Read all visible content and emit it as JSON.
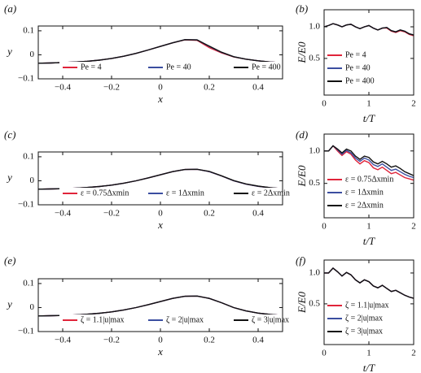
{
  "chart_data": [
    {
      "type": "line",
      "label": "(a)",
      "xlabel": "x",
      "ylabel": "y",
      "legend": "bottom",
      "xlim": [
        -0.5,
        0.5
      ],
      "ylim": [
        -0.1,
        0.12
      ],
      "xticks": [
        {
          "value": -0.4,
          "label": "−0.4"
        },
        {
          "value": -0.2,
          "label": "−0.2"
        },
        0,
        0.2,
        0.4
      ],
      "yticks": [
        {
          "value": -0.1,
          "label": "−0.1"
        },
        0,
        0.1
      ],
      "x": [
        -0.5,
        -0.45,
        -0.4,
        -0.35,
        -0.3,
        -0.25,
        -0.2,
        -0.15,
        -0.1,
        -0.05,
        0,
        0.05,
        0.1,
        0.15,
        0.2,
        0.25,
        0.3,
        0.35,
        0.4,
        0.45,
        0.5
      ],
      "series": [
        {
          "name": "Pe = 4",
          "color": "#e0243a",
          "values": [
            -0.035,
            -0.034,
            -0.032,
            -0.03,
            -0.027,
            -0.022,
            -0.015,
            -0.006,
            0.006,
            0.02,
            0.035,
            0.05,
            0.062,
            0.06,
            0.03,
            0.008,
            -0.009,
            -0.018,
            -0.025,
            -0.03,
            -0.033
          ]
        },
        {
          "name": "Pe = 40",
          "color": "#3b4ea0",
          "values": [
            -0.035,
            -0.034,
            -0.032,
            -0.03,
            -0.027,
            -0.022,
            -0.015,
            -0.006,
            0.006,
            0.02,
            0.035,
            0.05,
            0.063,
            0.062,
            0.035,
            0.01,
            -0.008,
            -0.018,
            -0.025,
            -0.03,
            -0.033
          ]
        },
        {
          "name": "Pe = 400",
          "color": "#111111",
          "values": [
            -0.035,
            -0.034,
            -0.032,
            -0.03,
            -0.027,
            -0.022,
            -0.015,
            -0.006,
            0.006,
            0.02,
            0.035,
            0.05,
            0.063,
            0.062,
            0.036,
            0.011,
            -0.008,
            -0.018,
            -0.025,
            -0.03,
            -0.033
          ]
        }
      ]
    },
    {
      "type": "line",
      "label": "(b)",
      "xlabel": "t/T",
      "ylabel": "E/E0",
      "legend": "lower left",
      "xlim": [
        0,
        2
      ],
      "ylim": [
        -0.08,
        1.27
      ],
      "xticks": [
        0,
        1,
        2
      ],
      "yticks": [
        0.5,
        {
          "value": 1,
          "label": "1.0"
        }
      ],
      "x": [
        0,
        0.1,
        0.2,
        0.3,
        0.4,
        0.5,
        0.6,
        0.7,
        0.8,
        0.9,
        1,
        1.1,
        1.2,
        1.3,
        1.4,
        1.5,
        1.6,
        1.7,
        1.8,
        1.9,
        2
      ],
      "series": [
        {
          "name": "Pe = 4",
          "color": "#e0243a",
          "values": [
            1.0,
            1.02,
            1.05,
            1.03,
            1.0,
            1.03,
            1.04,
            1.0,
            0.97,
            1.0,
            1.02,
            0.98,
            0.95,
            0.98,
            0.98,
            0.93,
            0.91,
            0.94,
            0.92,
            0.88,
            0.86
          ]
        },
        {
          "name": "Pe = 40",
          "color": "#3b4ea0",
          "values": [
            1.0,
            1.02,
            1.05,
            1.03,
            1.0,
            1.03,
            1.04,
            1.0,
            0.97,
            1.0,
            1.02,
            0.98,
            0.95,
            0.98,
            0.99,
            0.94,
            0.92,
            0.95,
            0.93,
            0.89,
            0.87
          ]
        },
        {
          "name": "Pe = 400",
          "color": "#111111",
          "values": [
            1.0,
            1.02,
            1.05,
            1.03,
            1.0,
            1.03,
            1.04,
            1.0,
            0.97,
            1.0,
            1.02,
            0.98,
            0.95,
            0.98,
            0.99,
            0.94,
            0.92,
            0.95,
            0.93,
            0.89,
            0.87
          ]
        }
      ]
    },
    {
      "type": "line",
      "label": "(c)",
      "xlabel": "x",
      "ylabel": "y",
      "legend": "bottom",
      "xlim": [
        -0.5,
        0.5
      ],
      "ylim": [
        -0.1,
        0.12
      ],
      "xticks": [
        {
          "value": -0.4,
          "label": "−0.4"
        },
        {
          "value": -0.2,
          "label": "−0.2"
        },
        0,
        0.2,
        0.4
      ],
      "yticks": [
        {
          "value": -0.1,
          "label": "−0.1"
        },
        0,
        0.1
      ],
      "x": [
        -0.5,
        -0.45,
        -0.4,
        -0.35,
        -0.3,
        -0.25,
        -0.2,
        -0.15,
        -0.1,
        -0.05,
        0,
        0.05,
        0.1,
        0.15,
        0.2,
        0.25,
        0.3,
        0.35,
        0.4,
        0.45,
        0.5
      ],
      "series": [
        {
          "name": "ε = 0.75Δxmin",
          "color": "#e0243a",
          "values": [
            -0.035,
            -0.034,
            -0.033,
            -0.031,
            -0.028,
            -0.024,
            -0.018,
            -0.01,
            0.0,
            0.012,
            0.025,
            0.038,
            0.047,
            0.048,
            0.038,
            0.02,
            0.0,
            -0.014,
            -0.023,
            -0.029,
            -0.033
          ]
        },
        {
          "name": "ε = 1Δxmin",
          "color": "#3b4ea0",
          "values": [
            -0.035,
            -0.034,
            -0.033,
            -0.031,
            -0.028,
            -0.024,
            -0.018,
            -0.01,
            0.0,
            0.012,
            0.025,
            0.038,
            0.047,
            0.048,
            0.038,
            0.02,
            0.0,
            -0.014,
            -0.023,
            -0.029,
            -0.033
          ]
        },
        {
          "name": "ε = 2Δxmin",
          "color": "#111111",
          "values": [
            -0.035,
            -0.034,
            -0.033,
            -0.031,
            -0.028,
            -0.024,
            -0.018,
            -0.01,
            0.0,
            0.012,
            0.025,
            0.038,
            0.047,
            0.048,
            0.039,
            0.021,
            0.001,
            -0.013,
            -0.022,
            -0.029,
            -0.033
          ]
        }
      ]
    },
    {
      "type": "line",
      "label": "(d)",
      "xlabel": "t/T",
      "ylabel": "E/E0",
      "legend": "lower left",
      "xlim": [
        0,
        2
      ],
      "ylim": [
        -0.03,
        1.26
      ],
      "xticks": [
        0,
        1,
        2
      ],
      "yticks": [
        0.5,
        {
          "value": 1,
          "label": "1.0"
        }
      ],
      "x": [
        0,
        0.1,
        0.2,
        0.3,
        0.4,
        0.5,
        0.6,
        0.7,
        0.8,
        0.9,
        1,
        1.1,
        1.2,
        1.3,
        1.4,
        1.5,
        1.6,
        1.7,
        1.8,
        1.9,
        2
      ],
      "series": [
        {
          "name": "ε = 0.75Δxmin",
          "color": "#e0243a",
          "values": [
            1.0,
            1.0,
            1.08,
            1.0,
            0.93,
            0.99,
            0.95,
            0.86,
            0.8,
            0.85,
            0.82,
            0.74,
            0.71,
            0.75,
            0.7,
            0.65,
            0.67,
            0.63,
            0.59,
            0.57,
            0.55
          ]
        },
        {
          "name": "ε = 1Δxmin",
          "color": "#3b4ea0",
          "values": [
            1.0,
            1.0,
            1.08,
            1.02,
            0.95,
            1.01,
            0.97,
            0.89,
            0.84,
            0.89,
            0.86,
            0.79,
            0.76,
            0.8,
            0.75,
            0.7,
            0.72,
            0.68,
            0.64,
            0.61,
            0.59
          ]
        },
        {
          "name": "ε = 2Δxmin",
          "color": "#111111",
          "values": [
            1.0,
            1.0,
            1.08,
            1.03,
            0.97,
            1.03,
            1.0,
            0.92,
            0.87,
            0.92,
            0.9,
            0.83,
            0.8,
            0.84,
            0.8,
            0.75,
            0.77,
            0.73,
            0.68,
            0.65,
            0.62
          ]
        }
      ]
    },
    {
      "type": "line",
      "label": "(e)",
      "xlabel": "x",
      "ylabel": "y",
      "legend": "bottom",
      "xlim": [
        -0.5,
        0.5
      ],
      "ylim": [
        -0.1,
        0.12
      ],
      "xticks": [
        {
          "value": -0.4,
          "label": "−0.4"
        },
        {
          "value": -0.2,
          "label": "−0.2"
        },
        0,
        0.2,
        0.4
      ],
      "yticks": [
        {
          "value": -0.1,
          "label": "−0.1"
        },
        0,
        0.1
      ],
      "x": [
        -0.5,
        -0.45,
        -0.4,
        -0.35,
        -0.3,
        -0.25,
        -0.2,
        -0.15,
        -0.1,
        -0.05,
        0,
        0.05,
        0.1,
        0.15,
        0.2,
        0.25,
        0.3,
        0.35,
        0.4,
        0.45,
        0.5
      ],
      "series": [
        {
          "name": "ζ = 1.1|u|max",
          "color": "#e0243a",
          "values": [
            -0.035,
            -0.034,
            -0.033,
            -0.031,
            -0.028,
            -0.024,
            -0.018,
            -0.01,
            0.0,
            0.012,
            0.025,
            0.038,
            0.047,
            0.048,
            0.038,
            0.02,
            0.0,
            -0.014,
            -0.023,
            -0.029,
            -0.033
          ]
        },
        {
          "name": "ζ = 2|u|max",
          "color": "#3b4ea0",
          "values": [
            -0.035,
            -0.034,
            -0.033,
            -0.031,
            -0.028,
            -0.024,
            -0.018,
            -0.01,
            0.0,
            0.012,
            0.025,
            0.038,
            0.047,
            0.048,
            0.038,
            0.02,
            0.0,
            -0.014,
            -0.023,
            -0.029,
            -0.033
          ]
        },
        {
          "name": "ζ = 3|u|max",
          "color": "#111111",
          "values": [
            -0.035,
            -0.034,
            -0.033,
            -0.031,
            -0.028,
            -0.024,
            -0.018,
            -0.01,
            0.0,
            0.012,
            0.025,
            0.038,
            0.047,
            0.048,
            0.038,
            0.02,
            0.0,
            -0.014,
            -0.023,
            -0.029,
            -0.033
          ]
        }
      ]
    },
    {
      "type": "line",
      "label": "(f)",
      "xlabel": "t/T",
      "ylabel": "E/E0",
      "legend": "lower left",
      "xlim": [
        0,
        2
      ],
      "ylim": [
        -0.16,
        1.21
      ],
      "xticks": [
        0,
        1,
        2
      ],
      "yticks": [
        0.5,
        {
          "value": 1,
          "label": "1.0"
        }
      ],
      "x": [
        0,
        0.1,
        0.2,
        0.3,
        0.4,
        0.5,
        0.6,
        0.7,
        0.8,
        0.9,
        1,
        1.1,
        1.2,
        1.3,
        1.4,
        1.5,
        1.6,
        1.7,
        1.8,
        1.9,
        2
      ],
      "series": [
        {
          "name": "ζ = 1.1|u|max",
          "color": "#e0243a",
          "values": [
            1.0,
            1.0,
            1.08,
            1.02,
            0.95,
            1.01,
            0.97,
            0.89,
            0.84,
            0.89,
            0.86,
            0.79,
            0.76,
            0.8,
            0.75,
            0.7,
            0.72,
            0.68,
            0.64,
            0.61,
            0.59
          ]
        },
        {
          "name": "ζ = 2|u|max",
          "color": "#3b4ea0",
          "values": [
            1.0,
            1.0,
            1.08,
            1.02,
            0.95,
            1.01,
            0.97,
            0.89,
            0.84,
            0.89,
            0.86,
            0.79,
            0.76,
            0.8,
            0.75,
            0.7,
            0.72,
            0.68,
            0.64,
            0.61,
            0.59
          ]
        },
        {
          "name": "ζ = 3|u|max",
          "color": "#111111",
          "values": [
            1.0,
            1.0,
            1.08,
            1.02,
            0.95,
            1.01,
            0.97,
            0.89,
            0.84,
            0.89,
            0.86,
            0.79,
            0.76,
            0.8,
            0.75,
            0.7,
            0.72,
            0.68,
            0.64,
            0.61,
            0.59
          ]
        }
      ]
    }
  ]
}
